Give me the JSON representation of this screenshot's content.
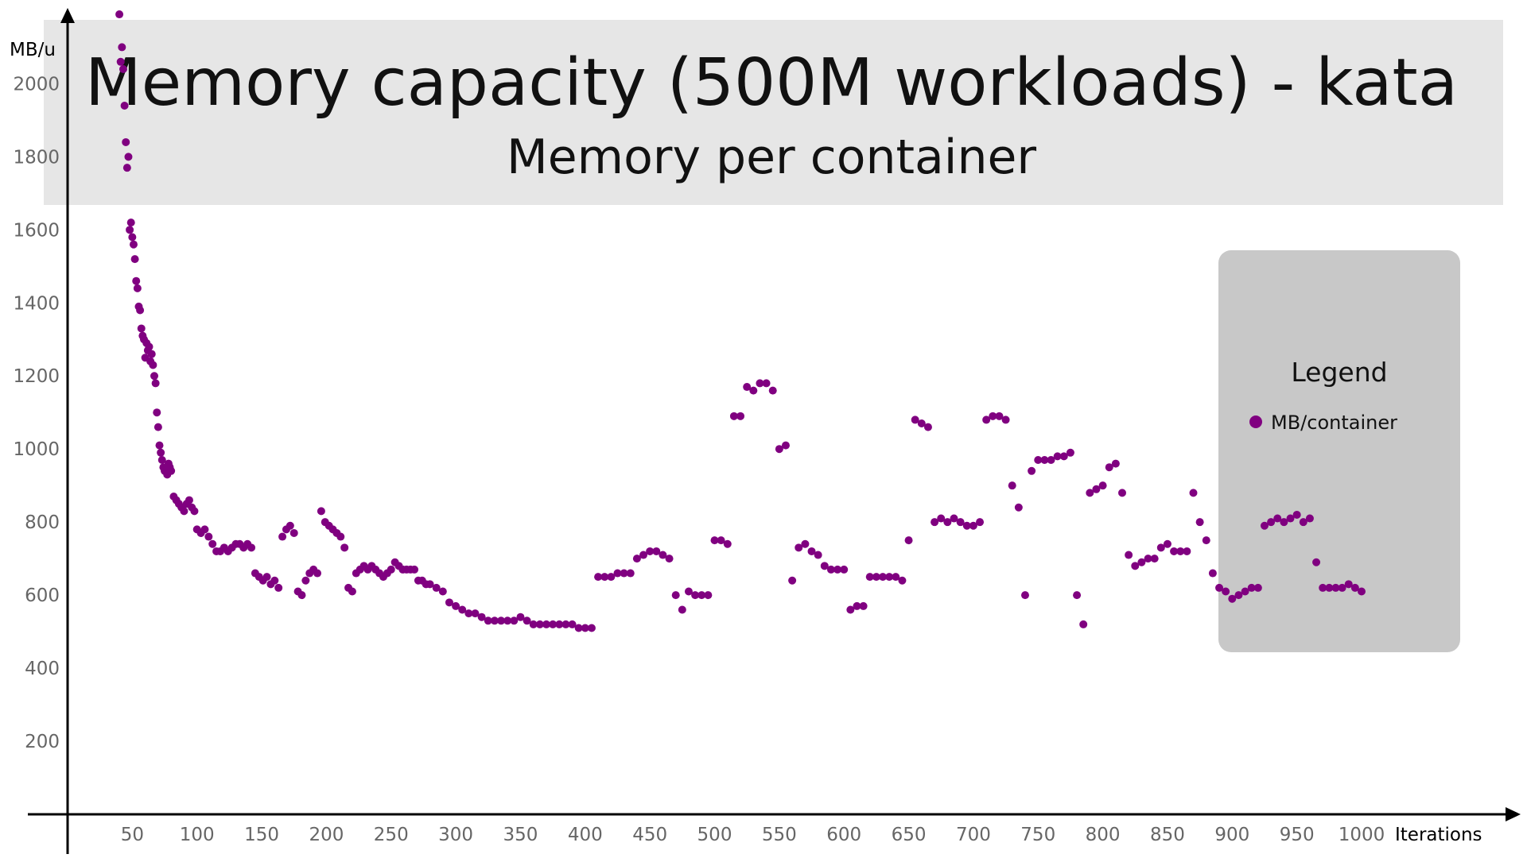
{
  "chart_data": {
    "type": "scatter",
    "title": "Memory capacity (500M workloads) - kata",
    "subtitle": "Memory per container",
    "xlabel": "Iterations",
    "ylabel": "MB/u",
    "xlim": [
      0,
      1050
    ],
    "ylim": [
      0,
      2150
    ],
    "xticks": [
      "50",
      "100",
      "150",
      "200",
      "250",
      "300",
      "350",
      "400",
      "450",
      "500",
      "550",
      "600",
      "650",
      "700",
      "750",
      "800",
      "850",
      "900",
      "950",
      "1000"
    ],
    "yticks": [
      "200",
      "400",
      "600",
      "800",
      "1000",
      "1200",
      "1400",
      "1600",
      "1800",
      "2000"
    ],
    "grid": false,
    "legend": {
      "title": "Legend",
      "position": "right"
    },
    "series": [
      {
        "name": "MB/container",
        "color": "#800080",
        "x": [
          40,
          41,
          42,
          43,
          44,
          45,
          46,
          47,
          48,
          49,
          50,
          51,
          52,
          53,
          54,
          55,
          56,
          57,
          58,
          59,
          60,
          61,
          62,
          63,
          64,
          65,
          66,
          67,
          68,
          69,
          70,
          71,
          72,
          73,
          74,
          75,
          76,
          77,
          78,
          79,
          80,
          82,
          84,
          86,
          88,
          90,
          92,
          94,
          96,
          98,
          100,
          103,
          106,
          109,
          112,
          115,
          118,
          121,
          124,
          127,
          130,
          133,
          136,
          139,
          142,
          145,
          148,
          151,
          154,
          157,
          160,
          163,
          166,
          169,
          172,
          175,
          178,
          181,
          184,
          187,
          190,
          193,
          196,
          199,
          202,
          205,
          208,
          211,
          214,
          217,
          220,
          223,
          226,
          229,
          232,
          235,
          238,
          241,
          244,
          247,
          250,
          253,
          256,
          259,
          262,
          265,
          268,
          271,
          274,
          277,
          280,
          285,
          290,
          295,
          300,
          305,
          310,
          315,
          320,
          325,
          330,
          335,
          340,
          345,
          350,
          355,
          360,
          365,
          370,
          375,
          380,
          385,
          390,
          395,
          400,
          405,
          410,
          415,
          420,
          425,
          430,
          435,
          440,
          445,
          450,
          455,
          460,
          465,
          470,
          475,
          480,
          485,
          490,
          495,
          500,
          505,
          510,
          515,
          520,
          525,
          530,
          535,
          540,
          545,
          550,
          555,
          560,
          565,
          570,
          575,
          580,
          585,
          590,
          595,
          600,
          605,
          610,
          615,
          620,
          625,
          630,
          635,
          640,
          645,
          650,
          655,
          660,
          665,
          670,
          675,
          680,
          685,
          690,
          695,
          700,
          705,
          710,
          715,
          720,
          725,
          730,
          735,
          740,
          745,
          750,
          755,
          760,
          765,
          770,
          775,
          780,
          785,
          790,
          795,
          800,
          805,
          810,
          815,
          820,
          825,
          830,
          835,
          840,
          845,
          850,
          855,
          860,
          865,
          870,
          875,
          880,
          885,
          890,
          895,
          900,
          905,
          910,
          915,
          920,
          925,
          930,
          935,
          940,
          945,
          950,
          955,
          960,
          965,
          970,
          975,
          980,
          985,
          990,
          995,
          1000
        ],
        "y": [
          2190,
          2060,
          2100,
          2040,
          1940,
          1840,
          1770,
          1800,
          1600,
          1620,
          1580,
          1560,
          1520,
          1460,
          1440,
          1390,
          1380,
          1330,
          1310,
          1300,
          1250,
          1290,
          1270,
          1280,
          1240,
          1260,
          1230,
          1200,
          1180,
          1100,
          1060,
          1010,
          990,
          970,
          950,
          940,
          950,
          930,
          960,
          950,
          940,
          870,
          860,
          850,
          840,
          830,
          850,
          860,
          840,
          830,
          780,
          770,
          780,
          760,
          740,
          720,
          720,
          730,
          720,
          730,
          740,
          740,
          730,
          740,
          730,
          660,
          650,
          640,
          650,
          630,
          640,
          620,
          760,
          780,
          790,
          770,
          610,
          600,
          640,
          660,
          670,
          660,
          830,
          800,
          790,
          780,
          770,
          760,
          730,
          620,
          610,
          660,
          670,
          680,
          670,
          680,
          670,
          660,
          650,
          660,
          670,
          690,
          680,
          670,
          670,
          670,
          670,
          640,
          640,
          630,
          630,
          620,
          610,
          580,
          570,
          560,
          550,
          550,
          540,
          530,
          530,
          530,
          530,
          530,
          540,
          530,
          520,
          520,
          520,
          520,
          520,
          520,
          520,
          510,
          510,
          510,
          650,
          650,
          650,
          660,
          660,
          660,
          700,
          710,
          720,
          720,
          710,
          700,
          600,
          560,
          610,
          600,
          600,
          600,
          750,
          750,
          740,
          1090,
          1090,
          1170,
          1160,
          1180,
          1180,
          1160,
          1000,
          1010,
          640,
          730,
          740,
          720,
          710,
          680,
          670,
          670,
          670,
          560,
          570,
          570,
          650,
          650,
          650,
          650,
          650,
          640,
          750,
          1080,
          1070,
          1060,
          800,
          810,
          800,
          810,
          800,
          790,
          790,
          800,
          1080,
          1090,
          1090,
          1080,
          900,
          840,
          600,
          940,
          970,
          970,
          970,
          980,
          980,
          990,
          600,
          520,
          880,
          890,
          900,
          950,
          960,
          880,
          710,
          680,
          690,
          700,
          700,
          730,
          740,
          720,
          720,
          720,
          880,
          800,
          750,
          660,
          620,
          610,
          590,
          600,
          610,
          620,
          620,
          790,
          800,
          810,
          800,
          810,
          820,
          800,
          810,
          690,
          620,
          620,
          620,
          620,
          630,
          620,
          610
        ]
      }
    ]
  }
}
